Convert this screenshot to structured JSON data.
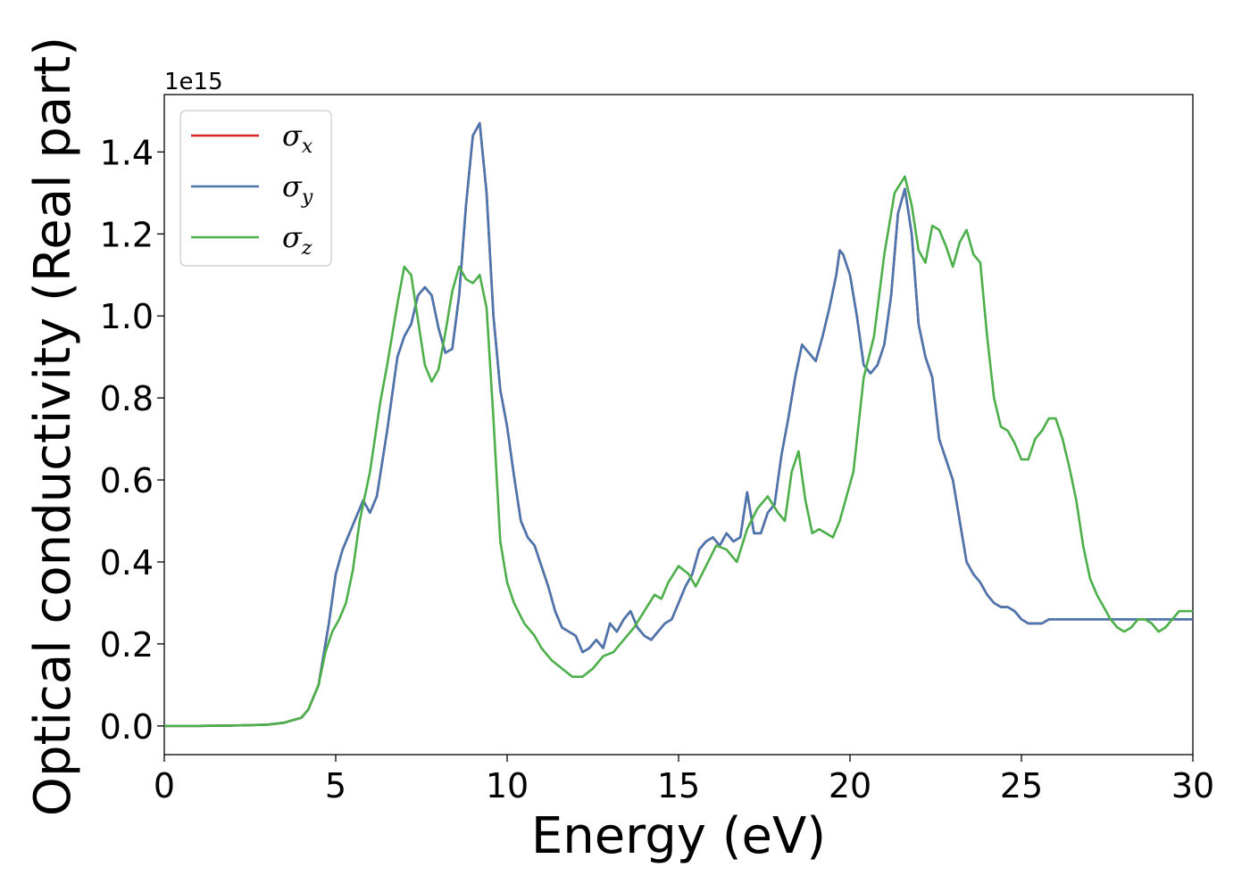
{
  "chart_data": {
    "type": "line",
    "xlabel": "Energy (eV)",
    "ylabel": "Optical conductivity (Real part)",
    "y_offset_label": "1e15",
    "xlim": [
      0,
      30
    ],
    "ylim": [
      -0.07,
      1.54
    ],
    "x_ticks": [
      0,
      5,
      10,
      15,
      20,
      25,
      30
    ],
    "x_tick_labels": [
      "0",
      "5",
      "10",
      "15",
      "20",
      "25",
      "30"
    ],
    "y_ticks": [
      0.0,
      0.2,
      0.4,
      0.6,
      0.8,
      1.0,
      1.2,
      1.4
    ],
    "y_tick_labels": [
      "0.0",
      "0.2",
      "0.4",
      "0.6",
      "0.8",
      "1.0",
      "1.2",
      "1.4"
    ],
    "grid": false,
    "legend_position": "top-left",
    "series": [
      {
        "name": "σx",
        "symbol": "σ",
        "subscript": "x",
        "color": "#d62728",
        "x": [
          0,
          1,
          2,
          3,
          3.5,
          4,
          4.2,
          4.5,
          4.8,
          5.0,
          5.2,
          5.5,
          5.8,
          6.0,
          6.2,
          6.5,
          6.8,
          7.0,
          7.2,
          7.4,
          7.6,
          7.8,
          8.0,
          8.2,
          8.4,
          8.6,
          8.8,
          9.0,
          9.2,
          9.4,
          9.6,
          9.8,
          10.0,
          10.2,
          10.4,
          10.6,
          10.8,
          11.0,
          11.2,
          11.4,
          11.6,
          11.8,
          12.0,
          12.2,
          12.4,
          12.6,
          12.8,
          13.0,
          13.2,
          13.4,
          13.6,
          13.8,
          14.0,
          14.2,
          14.4,
          14.6,
          14.8,
          15.0,
          15.2,
          15.4,
          15.6,
          15.8,
          16.0,
          16.2,
          16.4,
          16.6,
          16.8,
          17.0,
          17.2,
          17.4,
          17.6,
          17.8,
          18.0,
          18.2,
          18.4,
          18.6,
          18.8,
          19.0,
          19.2,
          19.4,
          19.6,
          19.7,
          19.8,
          20.0,
          20.2,
          20.4,
          20.6,
          20.8,
          21.0,
          21.2,
          21.4,
          21.6,
          21.8,
          22.0,
          22.2,
          22.4,
          22.6,
          22.8,
          23.0,
          23.2,
          23.4,
          23.6,
          23.8,
          24.0,
          24.2,
          24.4,
          24.6,
          24.8,
          25.0,
          25.2,
          25.4,
          25.6,
          25.8,
          26.0,
          26.2,
          26.4,
          26.6,
          26.8,
          27.0,
          27.2,
          27.4,
          27.6,
          27.8,
          28.0,
          28.2,
          28.4,
          28.6,
          28.8,
          29.0,
          29.2,
          29.4,
          29.6,
          29.8,
          30.0
        ],
        "y": [
          0,
          0,
          0.001,
          0.003,
          0.008,
          0.02,
          0.04,
          0.1,
          0.25,
          0.37,
          0.43,
          0.49,
          0.55,
          0.52,
          0.56,
          0.72,
          0.9,
          0.95,
          0.98,
          1.05,
          1.07,
          1.05,
          0.97,
          0.91,
          0.92,
          1.05,
          1.27,
          1.44,
          1.47,
          1.3,
          1.0,
          0.82,
          0.73,
          0.61,
          0.5,
          0.46,
          0.44,
          0.39,
          0.34,
          0.28,
          0.24,
          0.23,
          0.22,
          0.18,
          0.19,
          0.21,
          0.19,
          0.25,
          0.23,
          0.26,
          0.28,
          0.24,
          0.22,
          0.21,
          0.23,
          0.25,
          0.26,
          0.3,
          0.34,
          0.37,
          0.43,
          0.45,
          0.46,
          0.44,
          0.47,
          0.45,
          0.46,
          0.57,
          0.47,
          0.47,
          0.52,
          0.54,
          0.66,
          0.75,
          0.85,
          0.93,
          0.91,
          0.89,
          0.95,
          1.02,
          1.1,
          1.16,
          1.15,
          1.1,
          1.0,
          0.88,
          0.86,
          0.88,
          0.93,
          1.05,
          1.25,
          1.31,
          1.2,
          0.98,
          0.9,
          0.85,
          0.7,
          0.65,
          0.6,
          0.5,
          0.4,
          0.37,
          0.35,
          0.32,
          0.3,
          0.29,
          0.29,
          0.28,
          0.26,
          0.25,
          0.25,
          0.25,
          0.26,
          0.26,
          0.26,
          0.26,
          0.26,
          0.26,
          0.26,
          0.26,
          0.26,
          0.26,
          0.26,
          0.26,
          0.26,
          0.26,
          0.26,
          0.26,
          0.26,
          0.26,
          0.26,
          0.26,
          0.26,
          0.26
        ]
      },
      {
        "name": "σy",
        "symbol": "σ",
        "subscript": "y",
        "color": "#4a76b0",
        "x": [
          0,
          1,
          2,
          3,
          3.5,
          4,
          4.2,
          4.5,
          4.8,
          5.0,
          5.2,
          5.5,
          5.8,
          6.0,
          6.2,
          6.5,
          6.8,
          7.0,
          7.2,
          7.4,
          7.6,
          7.8,
          8.0,
          8.2,
          8.4,
          8.6,
          8.8,
          9.0,
          9.2,
          9.4,
          9.6,
          9.8,
          10.0,
          10.2,
          10.4,
          10.6,
          10.8,
          11.0,
          11.2,
          11.4,
          11.6,
          11.8,
          12.0,
          12.2,
          12.4,
          12.6,
          12.8,
          13.0,
          13.2,
          13.4,
          13.6,
          13.8,
          14.0,
          14.2,
          14.4,
          14.6,
          14.8,
          15.0,
          15.2,
          15.4,
          15.6,
          15.8,
          16.0,
          16.2,
          16.4,
          16.6,
          16.8,
          17.0,
          17.2,
          17.4,
          17.6,
          17.8,
          18.0,
          18.2,
          18.4,
          18.6,
          18.8,
          19.0,
          19.2,
          19.4,
          19.6,
          19.7,
          19.8,
          20.0,
          20.2,
          20.4,
          20.6,
          20.8,
          21.0,
          21.2,
          21.4,
          21.6,
          21.8,
          22.0,
          22.2,
          22.4,
          22.6,
          22.8,
          23.0,
          23.2,
          23.4,
          23.6,
          23.8,
          24.0,
          24.2,
          24.4,
          24.6,
          24.8,
          25.0,
          25.2,
          25.4,
          25.6,
          25.8,
          26.0,
          26.2,
          26.4,
          26.6,
          26.8,
          27.0,
          27.2,
          27.4,
          27.6,
          27.8,
          28.0,
          28.2,
          28.4,
          28.6,
          28.8,
          29.0,
          29.2,
          29.4,
          29.6,
          29.8,
          30.0
        ],
        "y": [
          0,
          0,
          0.001,
          0.003,
          0.008,
          0.02,
          0.04,
          0.1,
          0.25,
          0.37,
          0.43,
          0.49,
          0.55,
          0.52,
          0.56,
          0.72,
          0.9,
          0.95,
          0.98,
          1.05,
          1.07,
          1.05,
          0.97,
          0.91,
          0.92,
          1.05,
          1.27,
          1.44,
          1.47,
          1.3,
          1.0,
          0.82,
          0.73,
          0.61,
          0.5,
          0.46,
          0.44,
          0.39,
          0.34,
          0.28,
          0.24,
          0.23,
          0.22,
          0.18,
          0.19,
          0.21,
          0.19,
          0.25,
          0.23,
          0.26,
          0.28,
          0.24,
          0.22,
          0.21,
          0.23,
          0.25,
          0.26,
          0.3,
          0.34,
          0.37,
          0.43,
          0.45,
          0.46,
          0.44,
          0.47,
          0.45,
          0.46,
          0.57,
          0.47,
          0.47,
          0.52,
          0.54,
          0.66,
          0.75,
          0.85,
          0.93,
          0.91,
          0.89,
          0.95,
          1.02,
          1.1,
          1.16,
          1.15,
          1.1,
          1.0,
          0.88,
          0.86,
          0.88,
          0.93,
          1.05,
          1.25,
          1.31,
          1.2,
          0.98,
          0.9,
          0.85,
          0.7,
          0.65,
          0.6,
          0.5,
          0.4,
          0.37,
          0.35,
          0.32,
          0.3,
          0.29,
          0.29,
          0.28,
          0.26,
          0.25,
          0.25,
          0.25,
          0.26,
          0.26,
          0.26,
          0.26,
          0.26,
          0.26,
          0.26,
          0.26,
          0.26,
          0.26,
          0.26,
          0.26,
          0.26,
          0.26,
          0.26,
          0.26,
          0.26,
          0.26,
          0.26,
          0.26,
          0.26,
          0.26
        ]
      },
      {
        "name": "σz",
        "symbol": "σ",
        "subscript": "z",
        "color": "#4daf4a",
        "x": [
          0,
          1,
          2,
          3,
          3.5,
          4,
          4.2,
          4.5,
          4.7,
          4.9,
          5.1,
          5.3,
          5.5,
          5.7,
          6.0,
          6.3,
          6.5,
          6.8,
          7.0,
          7.2,
          7.4,
          7.6,
          7.8,
          8.0,
          8.2,
          8.4,
          8.6,
          8.8,
          9.0,
          9.2,
          9.4,
          9.6,
          9.8,
          10.0,
          10.2,
          10.5,
          10.8,
          11.0,
          11.3,
          11.6,
          11.9,
          12.2,
          12.5,
          12.8,
          13.1,
          13.4,
          13.7,
          14.0,
          14.3,
          14.5,
          14.7,
          15.0,
          15.3,
          15.5,
          15.8,
          16.1,
          16.4,
          16.7,
          17.0,
          17.3,
          17.6,
          17.9,
          18.1,
          18.3,
          18.5,
          18.7,
          18.9,
          19.1,
          19.3,
          19.5,
          19.7,
          19.9,
          20.1,
          20.4,
          20.7,
          21.0,
          21.3,
          21.6,
          21.8,
          22.0,
          22.2,
          22.4,
          22.6,
          22.8,
          23.0,
          23.2,
          23.4,
          23.6,
          23.8,
          24.0,
          24.2,
          24.4,
          24.6,
          24.8,
          25.0,
          25.2,
          25.4,
          25.6,
          25.8,
          26.0,
          26.2,
          26.4,
          26.6,
          26.8,
          27.0,
          27.2,
          27.4,
          27.6,
          27.8,
          28.0,
          28.2,
          28.4,
          28.6,
          28.8,
          29.0,
          29.2,
          29.4,
          29.6,
          29.8,
          30.0
        ],
        "y": [
          0,
          0,
          0.001,
          0.003,
          0.008,
          0.02,
          0.04,
          0.1,
          0.18,
          0.23,
          0.26,
          0.3,
          0.38,
          0.5,
          0.62,
          0.79,
          0.88,
          1.03,
          1.12,
          1.1,
          0.99,
          0.88,
          0.84,
          0.87,
          0.96,
          1.06,
          1.12,
          1.09,
          1.08,
          1.1,
          1.02,
          0.75,
          0.45,
          0.35,
          0.3,
          0.25,
          0.22,
          0.19,
          0.16,
          0.14,
          0.12,
          0.12,
          0.14,
          0.17,
          0.18,
          0.21,
          0.24,
          0.28,
          0.32,
          0.31,
          0.35,
          0.39,
          0.37,
          0.34,
          0.39,
          0.44,
          0.43,
          0.4,
          0.48,
          0.53,
          0.56,
          0.52,
          0.5,
          0.62,
          0.67,
          0.55,
          0.47,
          0.48,
          0.47,
          0.46,
          0.5,
          0.56,
          0.62,
          0.85,
          0.95,
          1.15,
          1.3,
          1.34,
          1.27,
          1.16,
          1.13,
          1.22,
          1.21,
          1.17,
          1.12,
          1.18,
          1.21,
          1.15,
          1.13,
          0.95,
          0.8,
          0.73,
          0.72,
          0.69,
          0.65,
          0.65,
          0.7,
          0.72,
          0.75,
          0.75,
          0.7,
          0.63,
          0.55,
          0.44,
          0.36,
          0.32,
          0.29,
          0.26,
          0.24,
          0.23,
          0.24,
          0.26,
          0.26,
          0.25,
          0.23,
          0.24,
          0.26,
          0.28,
          0.28,
          0.28
        ]
      }
    ]
  }
}
